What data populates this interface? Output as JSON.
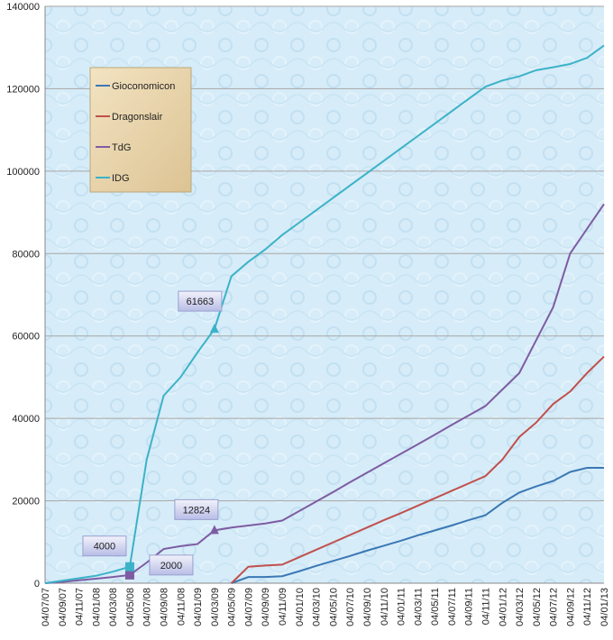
{
  "chart_data": {
    "type": "line",
    "categories": [
      "04/07/07",
      "04/09/07",
      "04/11/07",
      "04/01/08",
      "04/03/08",
      "04/05/08",
      "04/07/08",
      "04/09/08",
      "04/11/08",
      "04/01/09",
      "04/03/09",
      "04/05/09",
      "04/07/09",
      "04/09/09",
      "04/11/09",
      "04/01/10",
      "04/03/10",
      "04/05/10",
      "04/07/10",
      "04/09/10",
      "04/11/10",
      "04/01/11",
      "04/03/11",
      "04/05/11",
      "04/07/11",
      "04/09/11",
      "04/11/11",
      "04/01/12",
      "04/03/12",
      "04/05/12",
      "04/07/12",
      "04/09/12",
      "04/11/12",
      "04/01/13"
    ],
    "series": [
      {
        "name": "Gioconomicon",
        "color": "#3a78b5",
        "values": [
          null,
          null,
          null,
          null,
          null,
          null,
          null,
          null,
          null,
          null,
          null,
          0,
          1500,
          1500,
          1700,
          2900,
          4200,
          5400,
          6600,
          7900,
          9100,
          10300,
          11600,
          12800,
          14000,
          15300,
          16500,
          19500,
          22000,
          23500,
          24800,
          27000,
          28000,
          28000
        ]
      },
      {
        "name": "Dragonslair",
        "color": "#c0504d",
        "values": [
          null,
          null,
          null,
          null,
          null,
          null,
          null,
          null,
          null,
          null,
          null,
          0,
          4000,
          4300,
          4500,
          6300,
          8100,
          9900,
          11700,
          13500,
          15300,
          17000,
          18800,
          20600,
          22400,
          24200,
          26000,
          30000,
          35500,
          39000,
          43500,
          46500,
          51000,
          55000
        ]
      },
      {
        "name": "TdG",
        "color": "#7e5ca3",
        "values": [
          0,
          300,
          700,
          1100,
          1500,
          2000,
          5000,
          8300,
          9000,
          9500,
          12824,
          13500,
          14000,
          14500,
          15200,
          17500,
          19800,
          22100,
          24500,
          26800,
          29100,
          31400,
          33700,
          36000,
          38400,
          40700,
          43000,
          47000,
          51000,
          59000,
          67000,
          80000,
          86000,
          92000
        ],
        "value_labels": [
          null,
          null,
          null,
          null,
          null,
          "2000",
          null,
          null,
          null,
          null,
          "12824",
          null,
          null,
          null,
          null,
          null,
          null,
          null,
          null,
          null,
          null,
          null,
          null,
          null,
          null,
          null,
          null,
          null,
          null,
          null,
          null,
          null,
          null,
          null
        ]
      },
      {
        "name": "IDG",
        "color": "#3cb2c8",
        "values": [
          0,
          600,
          1200,
          1800,
          2800,
          4000,
          30000,
          45500,
          50000,
          56000,
          61663,
          74500,
          78000,
          81000,
          84500,
          87500,
          90500,
          93500,
          96500,
          99500,
          102500,
          105500,
          108500,
          111500,
          114500,
          117500,
          120500,
          122000,
          123000,
          124500,
          125200,
          126000,
          127500,
          130500
        ],
        "value_labels": [
          null,
          null,
          null,
          null,
          null,
          "4000",
          null,
          null,
          null,
          null,
          "61663",
          null,
          null,
          null,
          null,
          null,
          null,
          null,
          null,
          null,
          null,
          null,
          null,
          null,
          null,
          null,
          null,
          null,
          null,
          null,
          null,
          null,
          null,
          null
        ]
      }
    ],
    "ylim": [
      0,
      140000
    ],
    "yticks": [
      0,
      20000,
      40000,
      60000,
      80000,
      100000,
      120000,
      140000
    ],
    "grid": true
  }
}
